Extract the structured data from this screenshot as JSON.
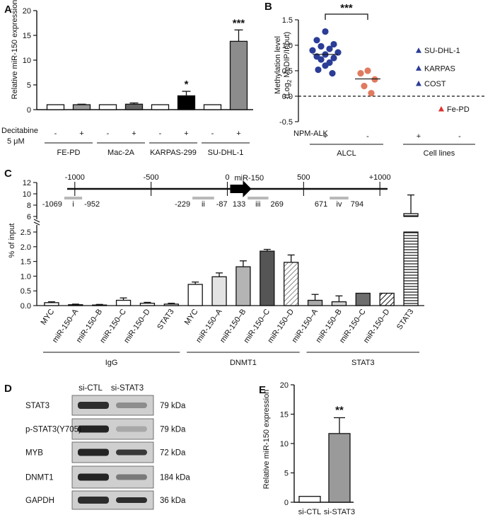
{
  "panels": {
    "A": {
      "label": "A"
    },
    "B": {
      "label": "B"
    },
    "C": {
      "label": "C"
    },
    "D": {
      "label": "D"
    },
    "E": {
      "label": "E"
    }
  },
  "chart_data": [
    {
      "panel": "A",
      "type": "bar",
      "ylabel": "Relative miR-150 expression",
      "ylim": [
        0,
        20
      ],
      "yticks": [
        0,
        5,
        10,
        15,
        20
      ],
      "row_label": "Decitabine",
      "row_sublabel": "5 μM",
      "groups": [
        "FE-PD",
        "Mac-2A",
        "KARPAS-299",
        "SU-DHL-1"
      ],
      "treatment": [
        "-",
        "+",
        "-",
        "+",
        "-",
        "+",
        "-",
        "+"
      ],
      "values": [
        1.0,
        1.0,
        1.0,
        1.1,
        1.0,
        2.8,
        1.0,
        13.8
      ],
      "errors": [
        0,
        0.1,
        0,
        0.25,
        0,
        0.9,
        0,
        2.3
      ],
      "colors": [
        "#ffffff",
        "#9a9a9a",
        "#ffffff",
        "#666666",
        "#ffffff",
        "#000000",
        "#ffffff",
        "#8c8c8c"
      ],
      "significance": [
        "",
        "",
        "",
        "",
        "",
        "*",
        "",
        "***"
      ]
    },
    {
      "panel": "B",
      "type": "scatter",
      "ylabel_main": "Methylation level",
      "ylabel_sub": "(Log",
      "ylabel_subscript": "2",
      "ylabel_end": " MeDIP/Input)",
      "ylim": [
        -0.5,
        1.5
      ],
      "yticks": [
        "-0.5",
        "0.0",
        "0.5",
        "1.0",
        "1.5"
      ],
      "row_label": "NPM-ALK",
      "treatment": [
        "+",
        "-",
        "+",
        "-"
      ],
      "groups": [
        "ALCL",
        "Cell lines"
      ],
      "series": [
        {
          "name": "ALCL NPM-ALK+",
          "color": "#2b3d97",
          "values": [
            1.27,
            1.1,
            1.02,
            0.98,
            0.93,
            0.9,
            0.86,
            0.82,
            0.78,
            0.75,
            0.72,
            0.66,
            0.6,
            0.52,
            0.45
          ],
          "median": 0.82
        },
        {
          "name": "ALCL NPM-ALK-",
          "color": "#e07a5f",
          "values": [
            0.5,
            0.45,
            0.33,
            0.2,
            0.06
          ],
          "median": 0.34
        }
      ],
      "legend": [
        {
          "label": "SU-DHL-1",
          "color": "#2b3d97",
          "value": 0.9
        },
        {
          "label": "KARPAS",
          "color": "#2b3d97",
          "value": 0.55
        },
        {
          "label": "COST",
          "color": "#2b3d97",
          "value": 0.25
        },
        {
          "label": "Fe-PD",
          "color": "#e03030",
          "value": -0.25
        }
      ],
      "significance": "***"
    },
    {
      "panel": "C",
      "type": "bar",
      "ylabel": "% of input",
      "ylim_lower": [
        0,
        2.5
      ],
      "ylim_upper": [
        6,
        12
      ],
      "yticks_lower": [
        "0.0",
        "0.5",
        "1.0",
        "1.5",
        "2.0",
        "2.5"
      ],
      "yticks_upper": [
        "6",
        "8",
        "10",
        "12"
      ],
      "categories": [
        "MYC",
        "miR-150–A",
        "miR-150–B",
        "miR-150–C",
        "miR-150–D",
        "STAT3",
        "MYC",
        "miR-150–A",
        "miR-150–B",
        "miR-150–C",
        "miR-150–D",
        "miR-150–A",
        "miR-150–B",
        "miR-150–C",
        "miR-150–D",
        "STAT3"
      ],
      "groups": [
        {
          "name": "IgG",
          "start": 0,
          "end": 5
        },
        {
          "name": "DNMT1",
          "start": 6,
          "end": 10
        },
        {
          "name": "STAT3",
          "start": 11,
          "end": 15
        }
      ],
      "values": [
        0.1,
        0.03,
        0.02,
        0.18,
        0.08,
        0.05,
        0.72,
        0.98,
        1.32,
        1.85,
        1.47,
        0.18,
        0.13,
        0.42,
        0.42,
        6.5
      ],
      "errors": [
        0.03,
        0.02,
        0.02,
        0.08,
        0.03,
        0.03,
        0.08,
        0.13,
        0.2,
        0.06,
        0.25,
        0.2,
        0.2,
        0,
        0,
        3.3
      ],
      "fills": [
        "#ffffff",
        "#ffffff",
        "#ffffff",
        "#ffffff",
        "#ffffff",
        "#ffffff",
        "#ffffff",
        "#e3e3e3",
        "#b4b4b4",
        "#555555",
        "#cfcfcf",
        "#a9a9a9",
        "#d3d3d3",
        "#6d6d6d",
        "#ffffff",
        "#ffffff"
      ],
      "patterns": [
        "none",
        "none",
        "none",
        "none",
        "none",
        "none",
        "none",
        "none",
        "none",
        "none",
        "diag",
        "none",
        "none",
        "none",
        "diagdark",
        "horiz"
      ],
      "map": {
        "axis_labels": [
          "-1000",
          "-500",
          "0",
          "500",
          "+1000"
        ],
        "axis_values": [
          -1000,
          -500,
          0,
          500,
          1000
        ],
        "gene_label": "miR-150",
        "regions": [
          {
            "roman": "i",
            "start": -1069,
            "end": -952,
            "start_label": "-1069",
            "end_label": "-952"
          },
          {
            "roman": "ii",
            "start": -229,
            "end": -87,
            "start_label": "-229",
            "end_label": "-87"
          },
          {
            "roman": "iii",
            "start": 133,
            "end": 269,
            "start_label": "133",
            "end_label": "269"
          },
          {
            "roman": "iv",
            "start": 671,
            "end": 794,
            "start_label": "671",
            "end_label": "794"
          }
        ]
      }
    },
    {
      "panel": "E",
      "type": "bar",
      "ylabel": "Relative miR-150 expression",
      "ylim": [
        0,
        20
      ],
      "yticks": [
        0,
        5,
        10,
        15,
        20
      ],
      "categories": [
        "si-CTL",
        "si-STAT3"
      ],
      "values": [
        1.0,
        11.7
      ],
      "errors": [
        0,
        2.7
      ],
      "colors": [
        "#ffffff",
        "#9a9a9a"
      ],
      "significance": [
        "",
        "**"
      ]
    }
  ],
  "blot": {
    "columns": [
      "si-CTL",
      "si-STAT3"
    ],
    "rows": [
      {
        "name": "STAT3",
        "size": "79 kDa",
        "left": 0.85,
        "right": 0.35
      },
      {
        "name": "p-STAT3(Y705)",
        "size": "79 kDa",
        "left": 0.9,
        "right": 0.2
      },
      {
        "name": "MYB",
        "size": "72 kDa",
        "left": 0.9,
        "right": 0.8
      },
      {
        "name": "DNMT1",
        "size": "184 kDa",
        "left": 0.9,
        "right": 0.45
      },
      {
        "name": "GAPDH",
        "size": "36 kDa",
        "left": 0.85,
        "right": 0.85
      }
    ]
  }
}
